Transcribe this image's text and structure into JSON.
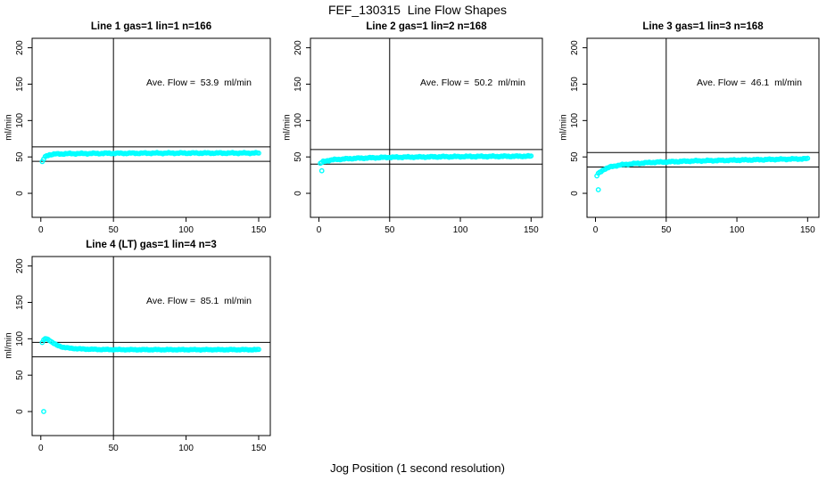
{
  "page": {
    "title": "FEF_130315  Line Flow Shapes",
    "xlabel": "Jog Position (1 second resolution)",
    "background_color": "#ffffff",
    "point_color": "#00ffff",
    "line_color": "#000000",
    "text_color": "#000000"
  },
  "chart_data": [
    {
      "type": "scatter",
      "title": "Line 1 gas=1 lin=1 n=166",
      "annotation": "Ave. Flow =  53.9  ml/min",
      "ave_flow_ml_min": 53.9,
      "n": 166,
      "ylabel": "ml/min",
      "x_ticks": [
        0,
        50,
        100,
        150
      ],
      "y_ticks": [
        0,
        50,
        100,
        150,
        200
      ],
      "xlim": [
        -6,
        158
      ],
      "ylim": [
        -33,
        213
      ],
      "vline_x": 50,
      "hlines": [
        63.9,
        43.9
      ],
      "curve_anchors": [
        [
          1,
          43
        ],
        [
          2,
          47
        ],
        [
          3,
          50
        ],
        [
          4,
          51.5
        ],
        [
          6,
          53
        ],
        [
          10,
          54
        ],
        [
          20,
          54.5
        ],
        [
          50,
          55
        ],
        [
          100,
          55.3
        ],
        [
          150,
          55.3
        ]
      ],
      "outliers": [],
      "x_step": 1,
      "noise": 0.9
    },
    {
      "type": "scatter",
      "title": "Line 2 gas=1 lin=2 n=168",
      "annotation": "Ave. Flow =  50.2  ml/min",
      "ave_flow_ml_min": 50.2,
      "n": 168,
      "ylabel": "ml/min",
      "x_ticks": [
        0,
        50,
        100,
        150
      ],
      "y_ticks": [
        0,
        50,
        100,
        150,
        200
      ],
      "xlim": [
        -6,
        158
      ],
      "ylim": [
        -33,
        213
      ],
      "vline_x": 50,
      "hlines": [
        60.2,
        40.2
      ],
      "curve_anchors": [
        [
          1,
          41
        ],
        [
          3,
          43.5
        ],
        [
          6,
          45
        ],
        [
          12,
          46.5
        ],
        [
          25,
          48
        ],
        [
          50,
          49.5
        ],
        [
          100,
          50.5
        ],
        [
          150,
          51
        ]
      ],
      "outliers": [
        [
          2,
          31
        ]
      ],
      "x_step": 1,
      "noise": 0.9
    },
    {
      "type": "scatter",
      "title": "Line 3 gas=1 lin=3 n=168",
      "annotation": "Ave. Flow =  46.1  ml/min",
      "ave_flow_ml_min": 46.1,
      "n": 168,
      "ylabel": "ml/min",
      "x_ticks": [
        0,
        50,
        100,
        150
      ],
      "y_ticks": [
        0,
        50,
        100,
        150,
        200
      ],
      "xlim": [
        -6,
        158
      ],
      "ylim": [
        -33,
        213
      ],
      "vline_x": 50,
      "hlines": [
        56.1,
        36.1
      ],
      "curve_anchors": [
        [
          1,
          24
        ],
        [
          2,
          27
        ],
        [
          4,
          30
        ],
        [
          6,
          33
        ],
        [
          10,
          36
        ],
        [
          16,
          38.5
        ],
        [
          25,
          40.5
        ],
        [
          40,
          42.5
        ],
        [
          70,
          44.5
        ],
        [
          110,
          46
        ],
        [
          150,
          47.5
        ]
      ],
      "outliers": [
        [
          2,
          5
        ]
      ],
      "x_step": 1,
      "noise": 0.9
    },
    {
      "type": "scatter",
      "title": "Line 4 (LT) gas=1 lin=4 n=3",
      "annotation": "Ave. Flow =  85.1  ml/min",
      "ave_flow_ml_min": 85.1,
      "n": 3,
      "ylabel": "ml/min",
      "x_ticks": [
        0,
        50,
        100,
        150
      ],
      "y_ticks": [
        0,
        50,
        100,
        150,
        200
      ],
      "xlim": [
        -6,
        158
      ],
      "ylim": [
        -33,
        213
      ],
      "vline_x": 50,
      "hlines": [
        95.1,
        75.1
      ],
      "curve_anchors": [
        [
          1,
          95
        ],
        [
          2,
          98
        ],
        [
          3,
          100
        ],
        [
          4,
          100
        ],
        [
          6,
          98
        ],
        [
          8,
          95
        ],
        [
          11,
          91
        ],
        [
          15,
          88.5
        ],
        [
          20,
          87
        ],
        [
          28,
          86
        ],
        [
          40,
          85.3
        ],
        [
          60,
          85
        ],
        [
          150,
          85
        ]
      ],
      "outliers": [
        [
          2,
          0
        ]
      ],
      "x_step": 1,
      "noise": 0.6
    }
  ]
}
